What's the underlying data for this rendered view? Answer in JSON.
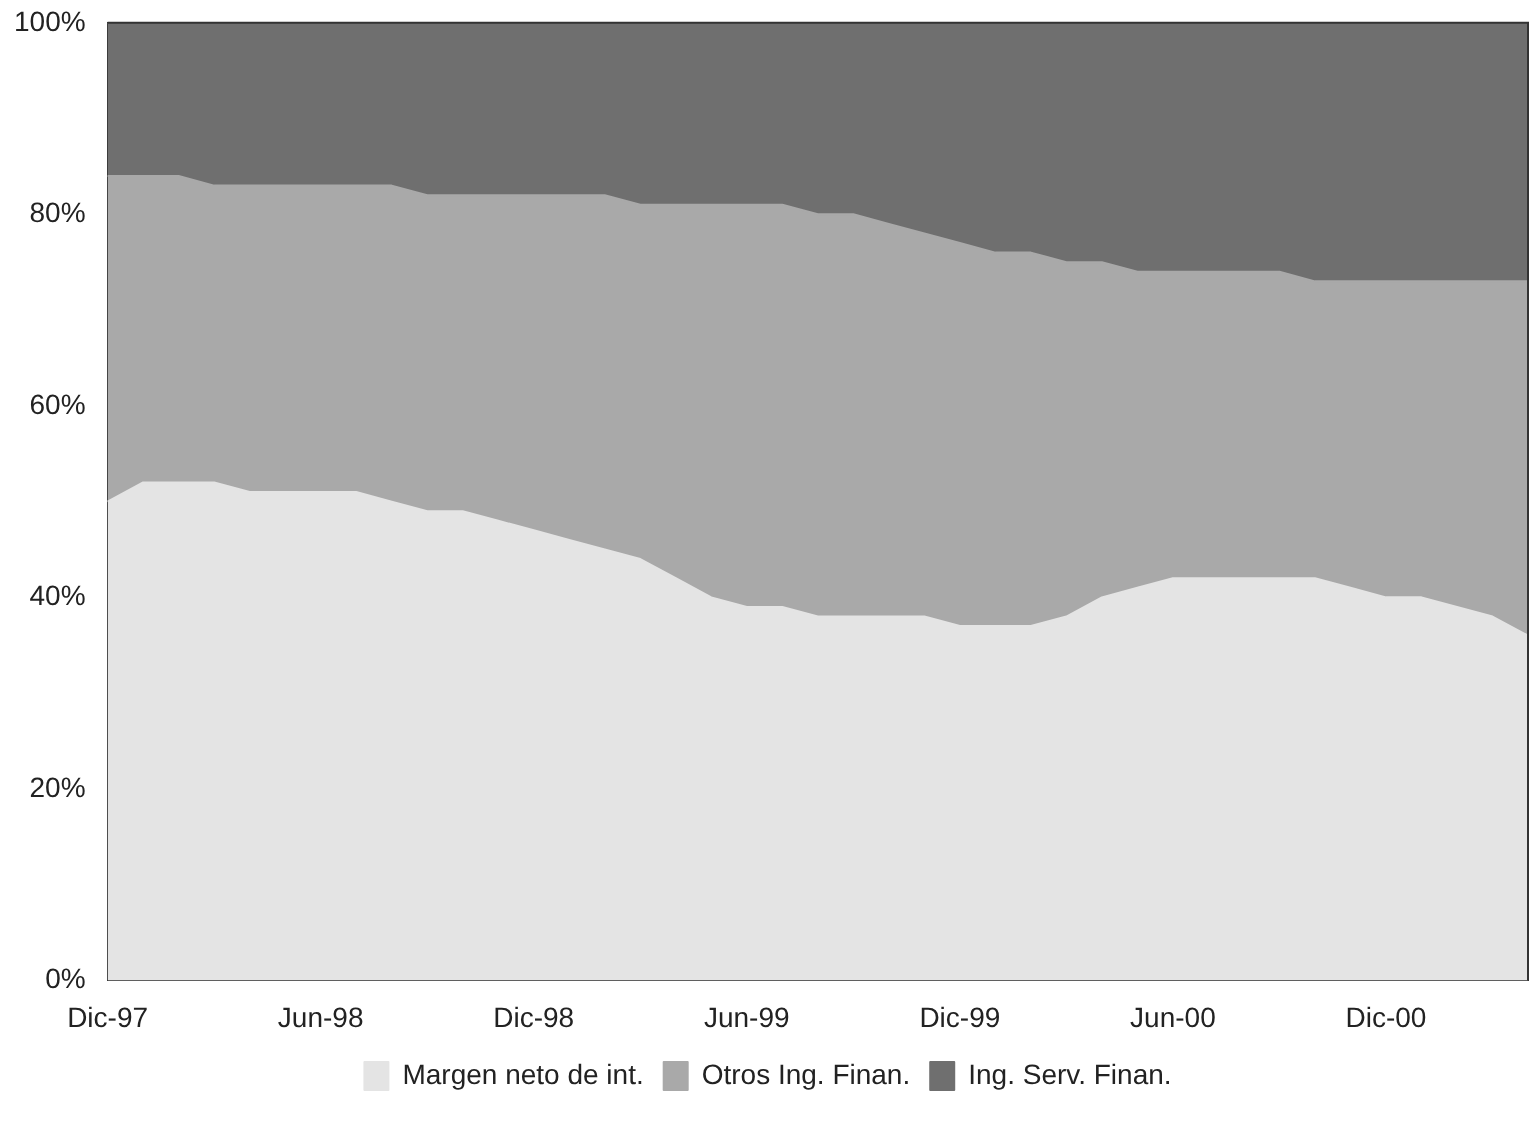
{
  "chart_data": {
    "type": "area",
    "stacked": true,
    "legend": "bottom",
    "grid": false,
    "marker": "none",
    "categories": [
      "Dic-97",
      null,
      null,
      null,
      null,
      null,
      "Jun-98",
      null,
      null,
      null,
      null,
      null,
      "Dic-98",
      null,
      null,
      null,
      null,
      null,
      "Jun-99",
      null,
      null,
      null,
      null,
      null,
      "Dic-99",
      null,
      null,
      null,
      null,
      null,
      "Jun-00",
      null,
      null,
      null,
      null,
      null,
      "Dic-00",
      null,
      null,
      null,
      null
    ],
    "ylim": [
      0,
      100
    ],
    "yticks": [
      {
        "value": 0,
        "label": "0%"
      },
      {
        "value": 20,
        "label": "20%"
      },
      {
        "value": 40,
        "label": "40%"
      },
      {
        "value": 60,
        "label": "60%"
      },
      {
        "value": 80,
        "label": "80%"
      },
      {
        "value": 100,
        "label": "100%"
      }
    ],
    "series": [
      {
        "name": "Margen neto de int.",
        "color": "#e4e4e4",
        "values": [
          50,
          52,
          52,
          52,
          51,
          51,
          51,
          51,
          50,
          49,
          49,
          48,
          47,
          46,
          45,
          44,
          42,
          40,
          39,
          39,
          38,
          38,
          38,
          38,
          37,
          37,
          37,
          38,
          40,
          41,
          42,
          42,
          42,
          42,
          42,
          41,
          40,
          40,
          39,
          38,
          36
        ]
      },
      {
        "name": "Otros Ing. Finan.",
        "color": "#a9a9a9",
        "values": [
          34,
          32,
          32,
          31,
          32,
          32,
          32,
          32,
          33,
          33,
          33,
          34,
          35,
          36,
          37,
          37,
          39,
          41,
          42,
          42,
          42,
          42,
          41,
          40,
          40,
          39,
          39,
          37,
          35,
          33,
          32,
          32,
          32,
          32,
          31,
          32,
          33,
          33,
          34,
          35,
          37
        ]
      },
      {
        "name": "Ing. Serv. Finan.",
        "color": "#6f6f6f",
        "values": [
          16,
          16,
          16,
          17,
          17,
          17,
          17,
          17,
          17,
          18,
          18,
          18,
          18,
          18,
          18,
          19,
          19,
          19,
          19,
          19,
          20,
          20,
          21,
          22,
          23,
          24,
          24,
          25,
          25,
          26,
          26,
          26,
          26,
          26,
          27,
          27,
          27,
          27,
          27,
          27,
          27
        ]
      }
    ]
  }
}
